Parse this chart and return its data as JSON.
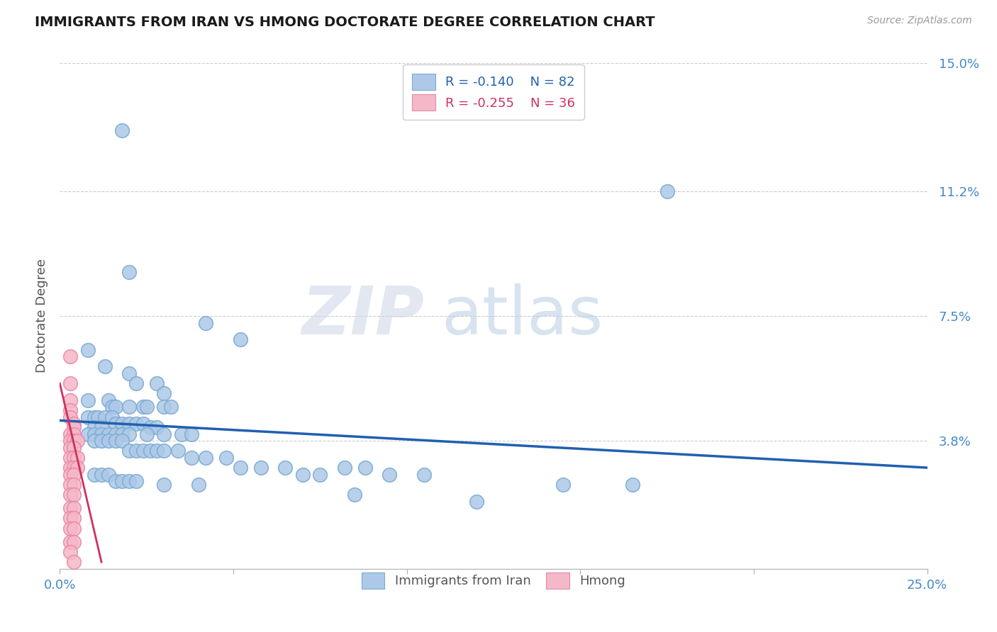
{
  "title": "IMMIGRANTS FROM IRAN VS HMONG DOCTORATE DEGREE CORRELATION CHART",
  "source": "Source: ZipAtlas.com",
  "ylabel": "Doctorate Degree",
  "xlim": [
    0.0,
    0.25
  ],
  "ylim": [
    0.0,
    0.15
  ],
  "watermark_zip": "ZIP",
  "watermark_atlas": "atlas",
  "legend_blue_r": "R = -0.140",
  "legend_blue_n": "N = 82",
  "legend_pink_r": "R = -0.255",
  "legend_pink_n": "N = 36",
  "legend_blue_label": "Immigrants from Iran",
  "legend_pink_label": "Hmong",
  "blue_color": "#adc8e8",
  "blue_edge": "#7aaad0",
  "pink_color": "#f5b8c8",
  "pink_edge": "#e888a8",
  "line_blue_color": "#2060b0",
  "line_pink_color": "#d03060",
  "background_color": "#ffffff",
  "grid_color": "#c8c8c8",
  "title_color": "#1a1a1a",
  "axis_tick_color": "#4488cc",
  "ylabel_color": "#555555",
  "blue_scatter": [
    [
      0.018,
      0.13
    ],
    [
      0.175,
      0.112
    ],
    [
      0.02,
      0.088
    ],
    [
      0.042,
      0.073
    ],
    [
      0.052,
      0.068
    ],
    [
      0.008,
      0.065
    ],
    [
      0.013,
      0.06
    ],
    [
      0.02,
      0.058
    ],
    [
      0.022,
      0.055
    ],
    [
      0.028,
      0.055
    ],
    [
      0.03,
      0.052
    ],
    [
      0.008,
      0.05
    ],
    [
      0.014,
      0.05
    ],
    [
      0.015,
      0.048
    ],
    [
      0.016,
      0.048
    ],
    [
      0.02,
      0.048
    ],
    [
      0.024,
      0.048
    ],
    [
      0.025,
      0.048
    ],
    [
      0.03,
      0.048
    ],
    [
      0.032,
      0.048
    ],
    [
      0.008,
      0.045
    ],
    [
      0.01,
      0.045
    ],
    [
      0.011,
      0.045
    ],
    [
      0.013,
      0.045
    ],
    [
      0.015,
      0.045
    ],
    [
      0.016,
      0.043
    ],
    [
      0.018,
      0.043
    ],
    [
      0.02,
      0.043
    ],
    [
      0.022,
      0.043
    ],
    [
      0.024,
      0.043
    ],
    [
      0.01,
      0.042
    ],
    [
      0.012,
      0.042
    ],
    [
      0.026,
      0.042
    ],
    [
      0.028,
      0.042
    ],
    [
      0.008,
      0.04
    ],
    [
      0.01,
      0.04
    ],
    [
      0.012,
      0.04
    ],
    [
      0.014,
      0.04
    ],
    [
      0.016,
      0.04
    ],
    [
      0.018,
      0.04
    ],
    [
      0.02,
      0.04
    ],
    [
      0.025,
      0.04
    ],
    [
      0.03,
      0.04
    ],
    [
      0.035,
      0.04
    ],
    [
      0.038,
      0.04
    ],
    [
      0.01,
      0.038
    ],
    [
      0.012,
      0.038
    ],
    [
      0.014,
      0.038
    ],
    [
      0.016,
      0.038
    ],
    [
      0.018,
      0.038
    ],
    [
      0.02,
      0.035
    ],
    [
      0.022,
      0.035
    ],
    [
      0.024,
      0.035
    ],
    [
      0.026,
      0.035
    ],
    [
      0.028,
      0.035
    ],
    [
      0.03,
      0.035
    ],
    [
      0.034,
      0.035
    ],
    [
      0.038,
      0.033
    ],
    [
      0.042,
      0.033
    ],
    [
      0.048,
      0.033
    ],
    [
      0.052,
      0.03
    ],
    [
      0.058,
      0.03
    ],
    [
      0.065,
      0.03
    ],
    [
      0.07,
      0.028
    ],
    [
      0.075,
      0.028
    ],
    [
      0.082,
      0.03
    ],
    [
      0.088,
      0.03
    ],
    [
      0.095,
      0.028
    ],
    [
      0.105,
      0.028
    ],
    [
      0.01,
      0.028
    ],
    [
      0.012,
      0.028
    ],
    [
      0.014,
      0.028
    ],
    [
      0.016,
      0.026
    ],
    [
      0.018,
      0.026
    ],
    [
      0.02,
      0.026
    ],
    [
      0.022,
      0.026
    ],
    [
      0.03,
      0.025
    ],
    [
      0.04,
      0.025
    ],
    [
      0.145,
      0.025
    ],
    [
      0.165,
      0.025
    ],
    [
      0.085,
      0.022
    ],
    [
      0.12,
      0.02
    ]
  ],
  "pink_scatter": [
    [
      0.003,
      0.063
    ],
    [
      0.003,
      0.055
    ],
    [
      0.003,
      0.05
    ],
    [
      0.003,
      0.047
    ],
    [
      0.003,
      0.045
    ],
    [
      0.004,
      0.043
    ],
    [
      0.004,
      0.042
    ],
    [
      0.003,
      0.04
    ],
    [
      0.004,
      0.04
    ],
    [
      0.003,
      0.038
    ],
    [
      0.004,
      0.038
    ],
    [
      0.005,
      0.038
    ],
    [
      0.003,
      0.036
    ],
    [
      0.004,
      0.036
    ],
    [
      0.003,
      0.033
    ],
    [
      0.004,
      0.033
    ],
    [
      0.005,
      0.033
    ],
    [
      0.003,
      0.03
    ],
    [
      0.004,
      0.03
    ],
    [
      0.005,
      0.03
    ],
    [
      0.003,
      0.028
    ],
    [
      0.004,
      0.028
    ],
    [
      0.003,
      0.025
    ],
    [
      0.004,
      0.025
    ],
    [
      0.003,
      0.022
    ],
    [
      0.004,
      0.022
    ],
    [
      0.003,
      0.018
    ],
    [
      0.004,
      0.018
    ],
    [
      0.003,
      0.015
    ],
    [
      0.004,
      0.015
    ],
    [
      0.003,
      0.012
    ],
    [
      0.004,
      0.012
    ],
    [
      0.003,
      0.008
    ],
    [
      0.004,
      0.008
    ],
    [
      0.003,
      0.005
    ],
    [
      0.004,
      0.002
    ]
  ],
  "blue_line_x": [
    0.0,
    0.25
  ],
  "blue_line_y": [
    0.044,
    0.03
  ],
  "pink_line_x": [
    0.0,
    0.012
  ],
  "pink_line_y": [
    0.055,
    0.002
  ]
}
